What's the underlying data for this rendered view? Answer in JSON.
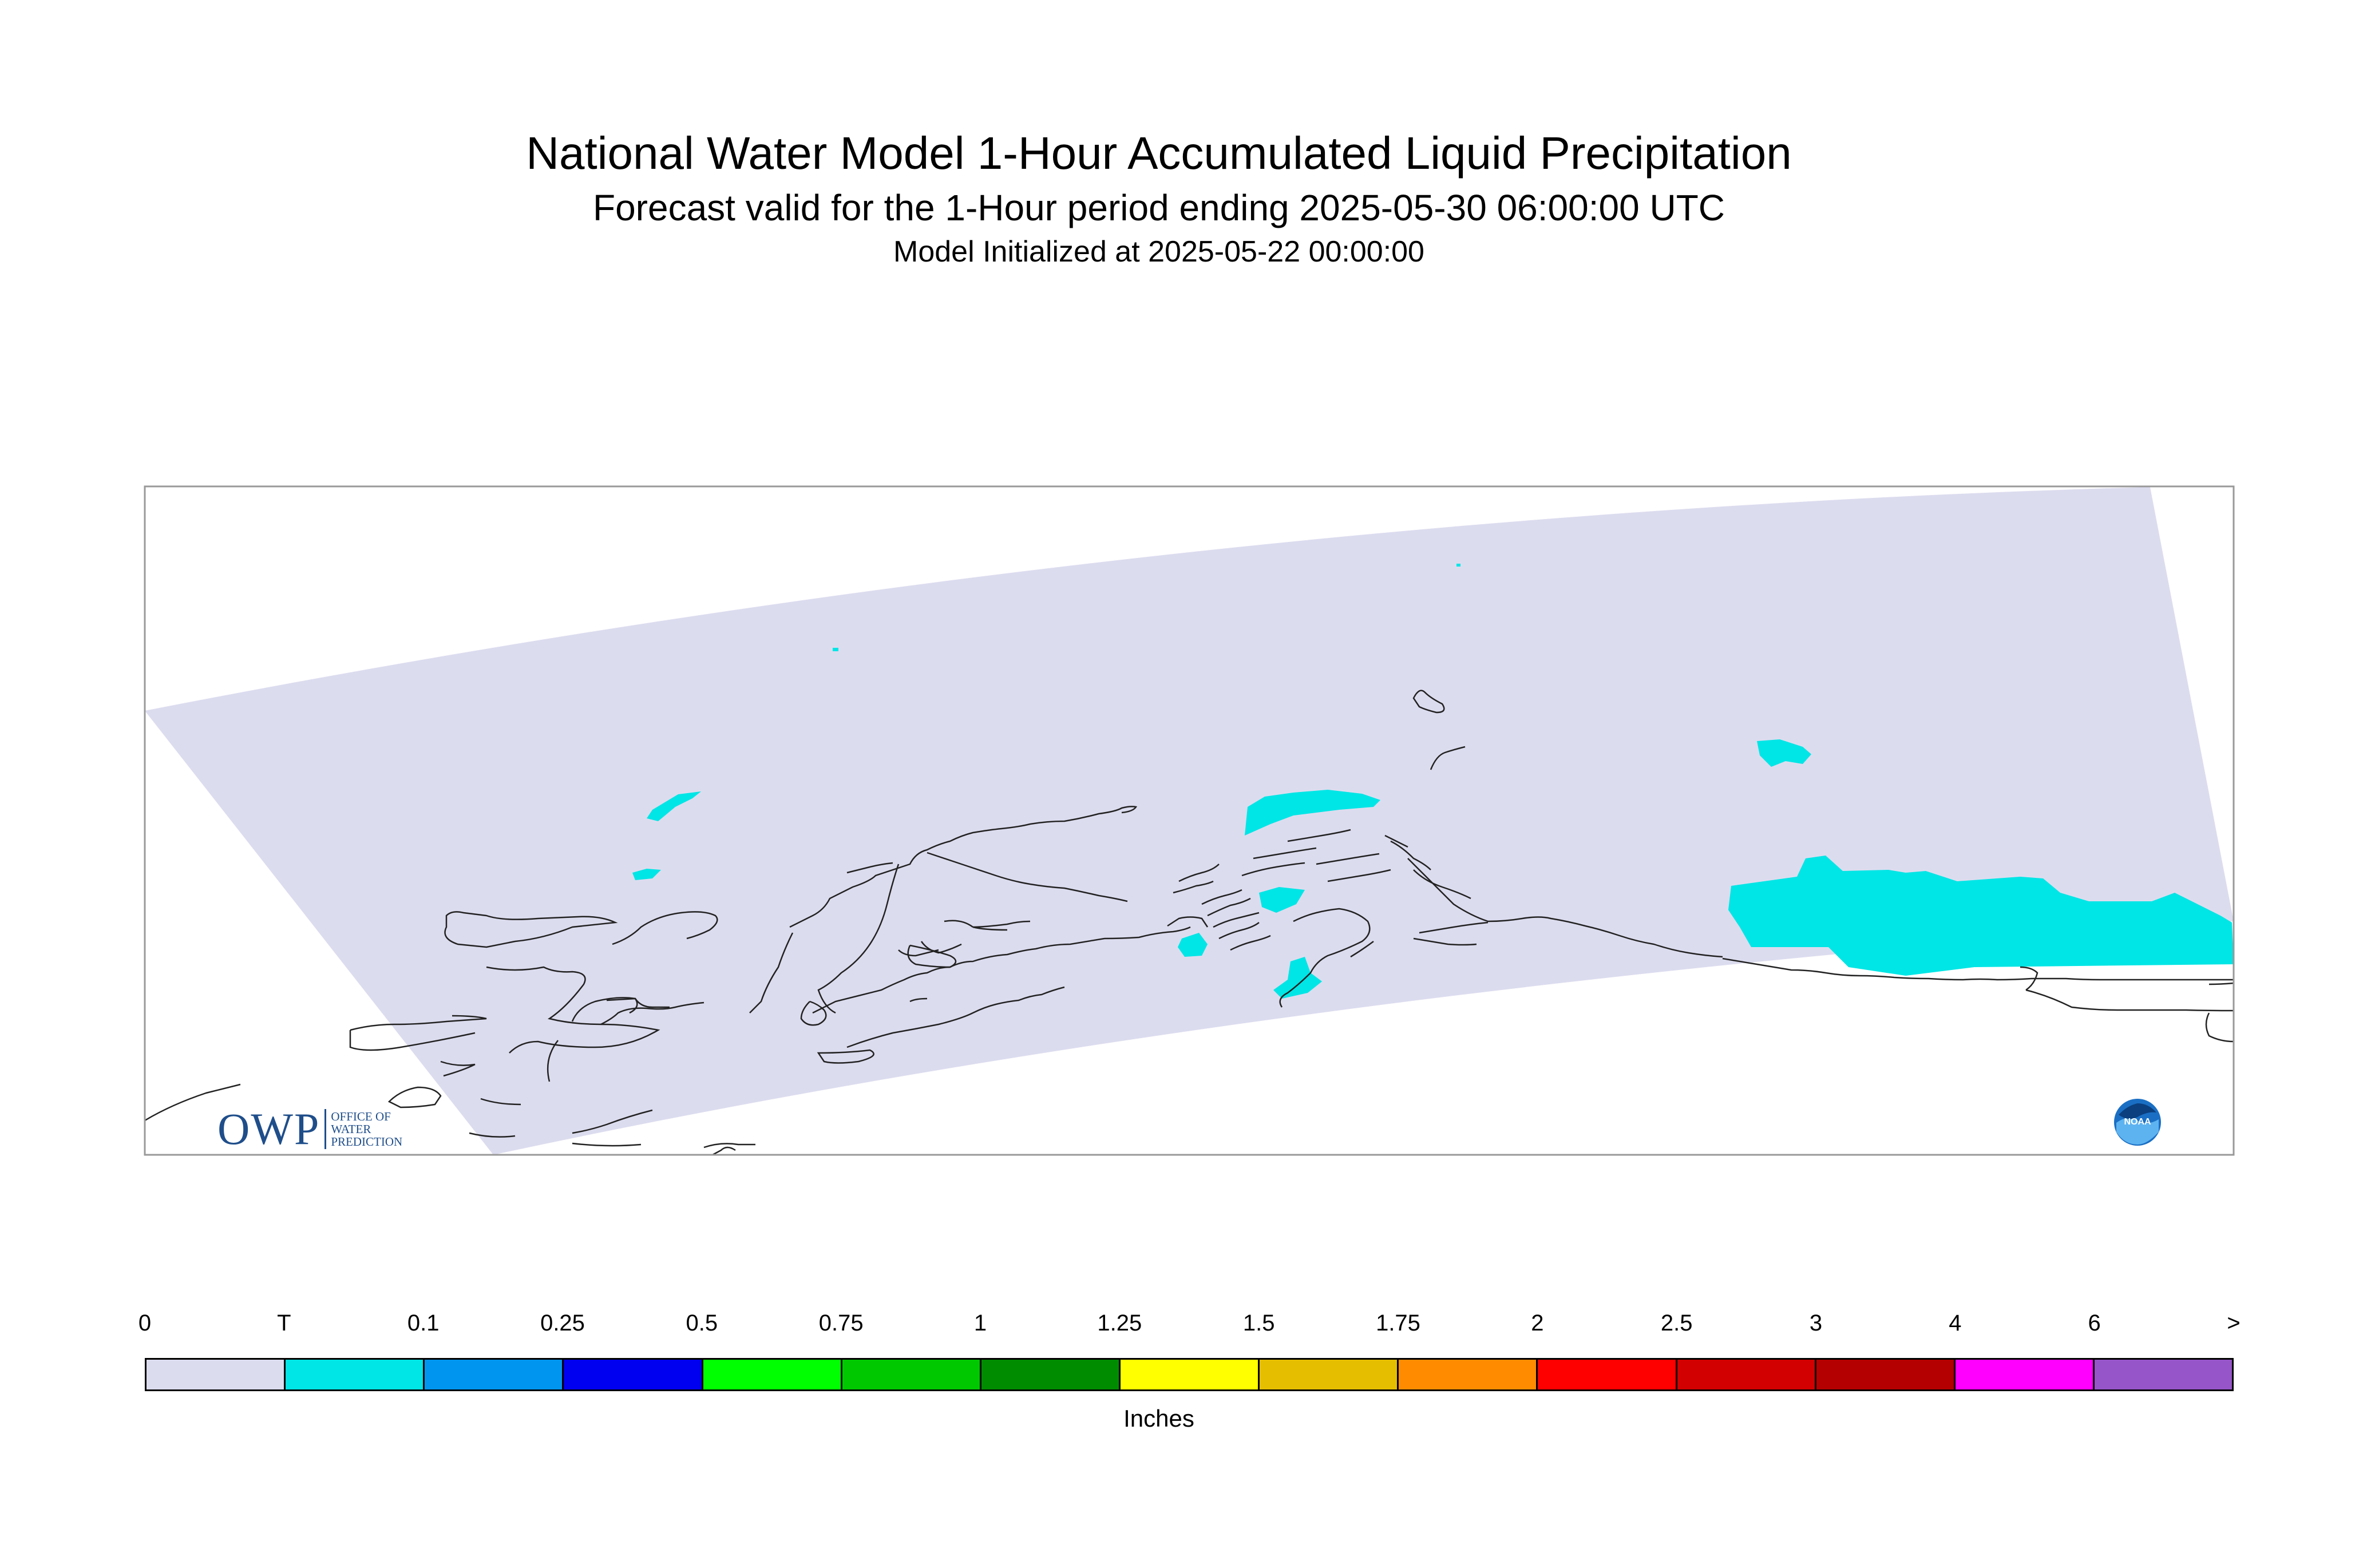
{
  "header": {
    "title": "National Water Model 1-Hour Accumulated Liquid Precipitation",
    "subtitle": "Forecast valid for the 1-Hour period ending 2025-05-30 06:00:00 UTC",
    "init_line": "Model Initialized at 2025-05-22 00:00:00"
  },
  "logos": {
    "owp_letters": "OWP",
    "owp_lines": [
      "OFFICE OF",
      "WATER",
      "PREDICTION"
    ],
    "noaa_text": "NOAA"
  },
  "legend": {
    "tick_labels": [
      "0",
      "T",
      "0.1",
      "0.25",
      "0.5",
      "0.75",
      "1",
      "1.25",
      "1.5",
      "1.75",
      "2",
      "2.5",
      "3",
      "4",
      "6",
      ">"
    ],
    "colors": [
      "#dcdcef",
      "#00e5e5",
      "#0096f0",
      "#0000f0",
      "#00ff00",
      "#00c800",
      "#008c00",
      "#ffff00",
      "#e6be00",
      "#ff8c00",
      "#ff0000",
      "#d20000",
      "#b40000",
      "#ff00ff",
      "#9655c8"
    ],
    "units": "Inches"
  },
  "map": {
    "domain_fill": "#dcdcef",
    "precip_fill": "#00e5e5",
    "coastline_color": "#222222"
  }
}
